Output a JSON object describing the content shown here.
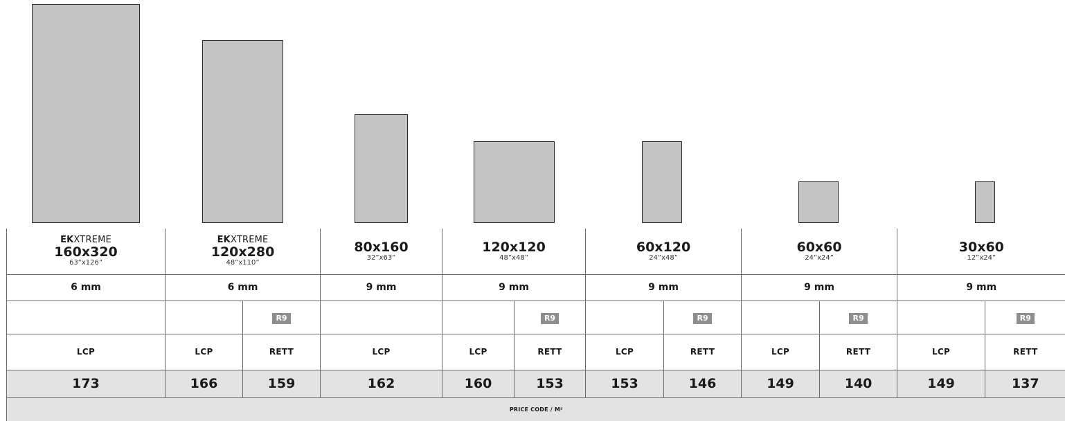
{
  "formats": [
    {
      "brand_bold": "EK",
      "brand_rest": "XTREME",
      "size": "160x320",
      "inch": "63”x126”",
      "thickness": "6 mm"
    },
    {
      "brand_bold": "EK",
      "brand_rest": "XTREME",
      "size": "120x280",
      "inch": "48”x110”",
      "thickness": "6 mm"
    },
    {
      "brand_bold": "",
      "brand_rest": "",
      "size": "80x160",
      "inch": "32”x63”",
      "thickness": "9 mm"
    },
    {
      "brand_bold": "",
      "brand_rest": "",
      "size": "120x120",
      "inch": "48”x48”",
      "thickness": "9 mm"
    },
    {
      "brand_bold": "",
      "brand_rest": "",
      "size": "60x120",
      "inch": "24”x48”",
      "thickness": "9 mm"
    },
    {
      "brand_bold": "",
      "brand_rest": "",
      "size": "60x60",
      "inch": "24”x24”",
      "thickness": "9 mm"
    },
    {
      "brand_bold": "",
      "brand_rest": "",
      "size": "30x60",
      "inch": "12”x24”",
      "thickness": "9 mm"
    }
  ],
  "badge": "R9",
  "finishes": [
    "LCP",
    "LCP",
    "RETT",
    "LCP",
    "LCP",
    "RETT",
    "LCP",
    "RETT",
    "LCP",
    "RETT",
    "LCP",
    "RETT"
  ],
  "prices": [
    "173",
    "166",
    "159",
    "162",
    "160",
    "153",
    "153",
    "146",
    "149",
    "140",
    "149",
    "137"
  ],
  "price_code_label": "PRICE CODE / M²",
  "colors": {
    "swatch": "#c4c4c4",
    "badge": "#8e8e8e",
    "price_band": "#e3e3e3"
  }
}
